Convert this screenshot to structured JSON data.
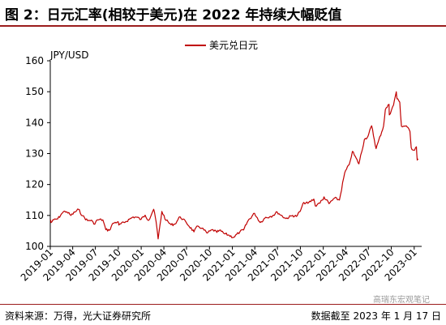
{
  "header": {
    "title": "图 2：日元汇率(相较于美元)在 2022 年持续大幅贬值"
  },
  "footer": {
    "source": "资料来源：万得，光大证券研究所",
    "date": "数据截至 2023 年 1 月 17 日"
  },
  "watermark": "高瑞东宏观笔记",
  "colors": {
    "line": "#c00000",
    "rule": "#9b1c1c",
    "axis": "#000000"
  },
  "chart_data": {
    "type": "line",
    "ylabel": "JPY/USD",
    "ylim": [
      100,
      160
    ],
    "yticks": [
      100,
      110,
      120,
      130,
      140,
      150,
      160
    ],
    "xlim": [
      "2019-01-01",
      "2023-01-31"
    ],
    "xticks": [
      "2019-01",
      "2019-04",
      "2019-07",
      "2019-10",
      "2020-01",
      "2020-04",
      "2020-07",
      "2020-10",
      "2021-01",
      "2021-04",
      "2021-07",
      "2021-10",
      "2022-01",
      "2022-04",
      "2022-07",
      "2022-10",
      "2023-01"
    ],
    "legend": {
      "position": "top-center"
    },
    "grid": false,
    "series": [
      {
        "name": "美元兑日元",
        "points": [
          [
            "2019-01-02",
            108.6
          ],
          [
            "2019-01-04",
            107.7
          ],
          [
            "2019-01-15",
            108.6
          ],
          [
            "2019-01-31",
            108.9
          ],
          [
            "2019-02-15",
            110.5
          ],
          [
            "2019-02-28",
            111.4
          ],
          [
            "2019-03-08",
            111.2
          ],
          [
            "2019-03-25",
            110.0
          ],
          [
            "2019-04-10",
            111.1
          ],
          [
            "2019-04-24",
            112.0
          ],
          [
            "2019-05-10",
            109.9
          ],
          [
            "2019-05-31",
            108.3
          ],
          [
            "2019-06-15",
            108.5
          ],
          [
            "2019-06-25",
            107.2
          ],
          [
            "2019-07-10",
            108.6
          ],
          [
            "2019-07-31",
            108.6
          ],
          [
            "2019-08-12",
            105.4
          ],
          [
            "2019-08-26",
            105.2
          ],
          [
            "2019-09-10",
            107.5
          ],
          [
            "2019-09-30",
            108.0
          ],
          [
            "2019-10-03",
            106.9
          ],
          [
            "2019-10-31",
            108.0
          ],
          [
            "2019-11-15",
            108.8
          ],
          [
            "2019-11-30",
            109.5
          ],
          [
            "2019-12-15",
            109.4
          ],
          [
            "2019-12-31",
            108.7
          ],
          [
            "2020-01-17",
            110.1
          ],
          [
            "2020-01-31",
            108.4
          ],
          [
            "2020-02-20",
            112.0
          ],
          [
            "2020-03-01",
            108.0
          ],
          [
            "2020-03-09",
            102.4
          ],
          [
            "2020-03-24",
            111.3
          ],
          [
            "2020-04-10",
            108.4
          ],
          [
            "2020-04-30",
            107.0
          ],
          [
            "2020-05-15",
            107.2
          ],
          [
            "2020-06-05",
            109.6
          ],
          [
            "2020-06-30",
            107.7
          ],
          [
            "2020-07-31",
            104.7
          ],
          [
            "2020-08-15",
            106.6
          ],
          [
            "2020-09-01",
            105.9
          ],
          [
            "2020-09-21",
            104.3
          ],
          [
            "2020-10-15",
            105.4
          ],
          [
            "2020-10-31",
            104.5
          ],
          [
            "2020-11-10",
            105.2
          ],
          [
            "2020-11-30",
            104.1
          ],
          [
            "2020-12-15",
            103.7
          ],
          [
            "2021-01-06",
            102.9
          ],
          [
            "2021-01-31",
            104.7
          ],
          [
            "2021-02-15",
            105.3
          ],
          [
            "2021-03-05",
            108.3
          ],
          [
            "2021-03-31",
            110.7
          ],
          [
            "2021-04-23",
            107.7
          ],
          [
            "2021-05-15",
            109.4
          ],
          [
            "2021-05-31",
            109.6
          ],
          [
            "2021-06-15",
            110.1
          ],
          [
            "2021-06-30",
            111.1
          ],
          [
            "2021-07-15",
            110.1
          ],
          [
            "2021-08-04",
            109.0
          ],
          [
            "2021-08-31",
            110.0
          ],
          [
            "2021-09-15",
            109.7
          ],
          [
            "2021-09-30",
            111.3
          ],
          [
            "2021-10-15",
            114.2
          ],
          [
            "2021-10-31",
            113.9
          ],
          [
            "2021-11-24",
            115.3
          ],
          [
            "2021-11-30",
            113.1
          ],
          [
            "2021-12-15",
            114.0
          ],
          [
            "2021-12-31",
            115.1
          ],
          [
            "2022-01-04",
            116.0
          ],
          [
            "2022-01-24",
            113.8
          ],
          [
            "2022-02-15",
            115.6
          ],
          [
            "2022-03-07",
            115.0
          ],
          [
            "2022-03-28",
            123.8
          ],
          [
            "2022-04-15",
            126.4
          ],
          [
            "2022-04-28",
            130.7
          ],
          [
            "2022-05-24",
            126.7
          ],
          [
            "2022-06-15",
            134.5
          ],
          [
            "2022-06-30",
            135.7
          ],
          [
            "2022-07-14",
            139.0
          ],
          [
            "2022-08-01",
            131.6
          ],
          [
            "2022-08-31",
            138.9
          ],
          [
            "2022-09-07",
            144.2
          ],
          [
            "2022-09-22",
            145.9
          ],
          [
            "2022-09-23",
            142.5
          ],
          [
            "2022-10-10",
            145.7
          ],
          [
            "2022-10-21",
            150.0
          ],
          [
            "2022-10-24",
            147.7
          ],
          [
            "2022-11-04",
            146.6
          ],
          [
            "2022-11-11",
            138.8
          ],
          [
            "2022-11-30",
            139.0
          ],
          [
            "2022-12-15",
            137.1
          ],
          [
            "2022-12-20",
            131.9
          ],
          [
            "2022-12-30",
            131.1
          ],
          [
            "2023-01-10",
            132.2
          ],
          [
            "2023-01-13",
            127.9
          ],
          [
            "2023-01-17",
            128.3
          ]
        ]
      }
    ]
  }
}
